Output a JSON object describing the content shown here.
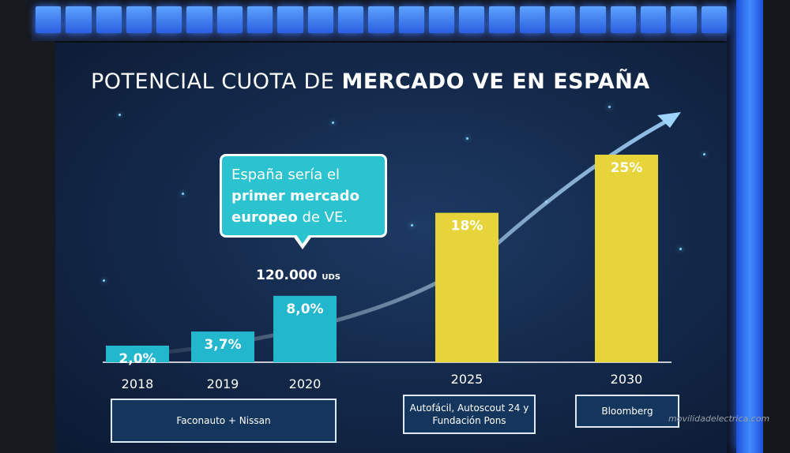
{
  "slide": {
    "title_regular": "POTENCIAL CUOTA DE ",
    "title_bold": "MERCADO VE EN ESPAÑA",
    "callout": {
      "line1": "España sería el",
      "bold2": "primer mercado",
      "bold3": "europeo",
      "rest3": " de VE."
    },
    "units_value": "120.000",
    "units_label": "UDS",
    "sources": [
      {
        "label": "Faconauto + Nissan",
        "years": [
          "2018",
          "2019",
          "2020"
        ]
      },
      {
        "label": "Autofácil, Autoscout 24 y Fundación Pons",
        "years": [
          "2025"
        ]
      },
      {
        "label": "Bloomberg",
        "years": [
          "2030"
        ]
      }
    ],
    "watermark": "movilidadelectrica.com",
    "colors": {
      "bar_cyan": "#22b7cc",
      "bar_yellow": "#e7d43a",
      "callout": "#2bc3cf",
      "background": "#142a4c"
    }
  },
  "chart_data": {
    "type": "bar",
    "title": "POTENCIAL CUOTA DE MERCADO VE EN ESPAÑA",
    "categories": [
      "2018",
      "2019",
      "2020",
      "2025",
      "2030"
    ],
    "values": [
      2.0,
      3.7,
      8.0,
      18,
      25
    ],
    "value_labels": [
      "2,0%",
      "3,7%",
      "8,0%",
      "18%",
      "25%"
    ],
    "bar_colors": [
      "#22b7cc",
      "#22b7cc",
      "#22b7cc",
      "#e7d43a",
      "#e7d43a"
    ],
    "ylim": [
      0,
      25
    ],
    "grid": false,
    "annotations": [
      "120.000 UDS",
      "España sería el primer mercado europeo de VE."
    ],
    "trend_arrow": true
  }
}
